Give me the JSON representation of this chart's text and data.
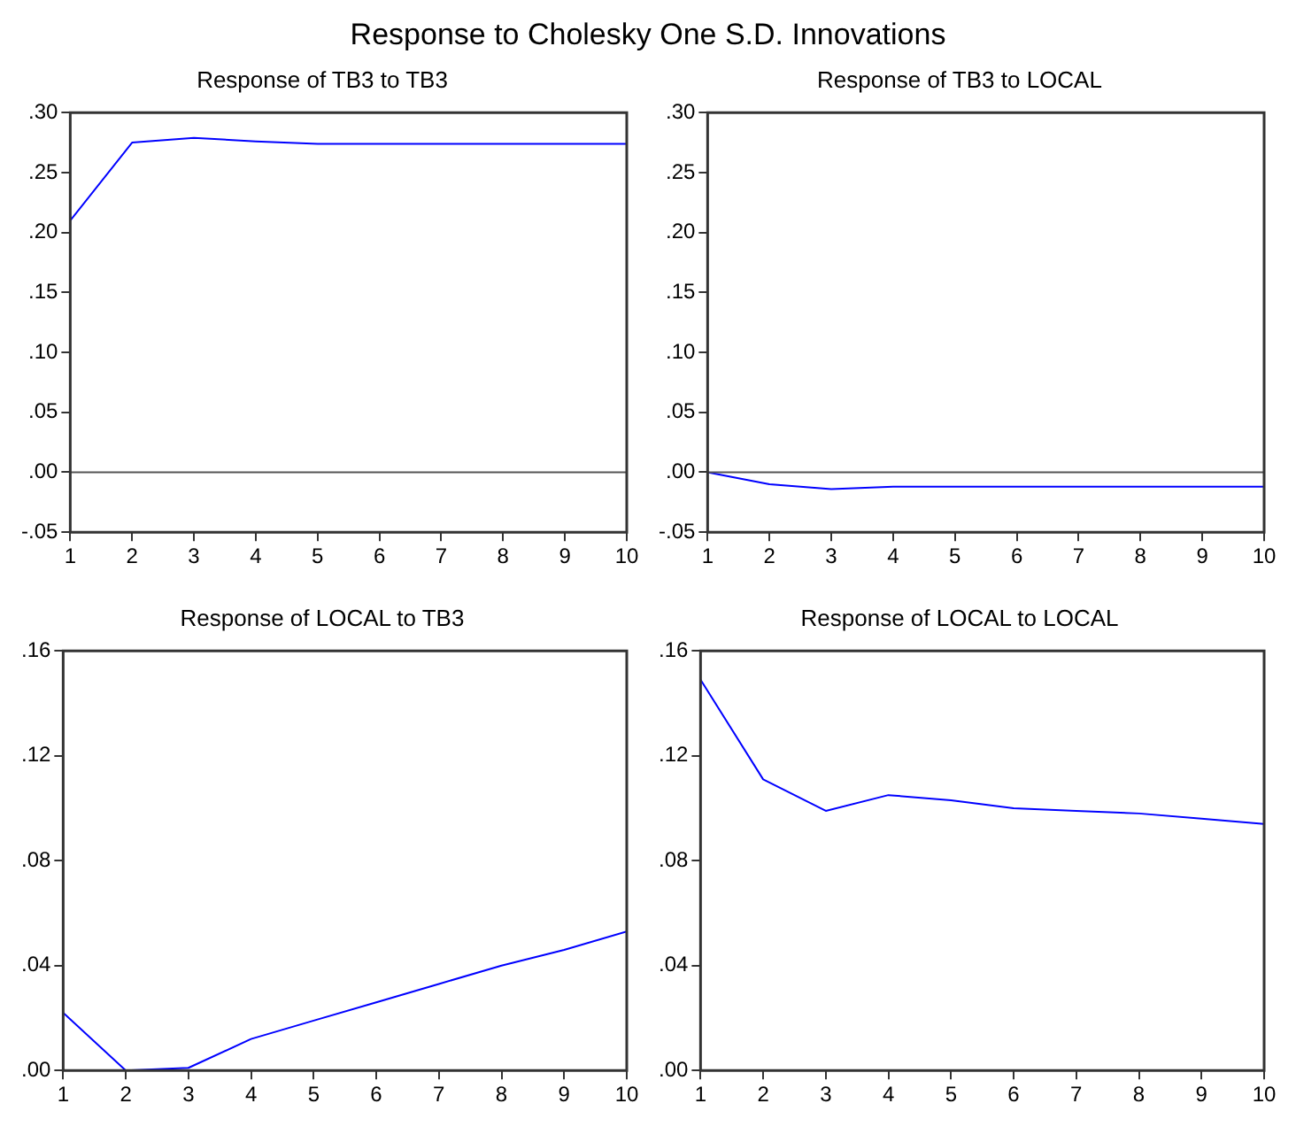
{
  "chart_data": [
    {
      "type": "line",
      "title": "Response of TB3 to TB3",
      "annotations": [
        "Response to Cholesky One S.D. Innovations"
      ],
      "x": [
        1,
        2,
        3,
        4,
        5,
        6,
        7,
        8,
        9,
        10
      ],
      "series": [
        {
          "color": "#0000ff",
          "values": [
            0.21,
            0.275,
            0.279,
            0.276,
            0.274,
            0.274,
            0.274,
            0.274,
            0.274,
            0.274
          ]
        }
      ],
      "xlim": [
        1,
        10
      ],
      "xticks": [
        1,
        2,
        3,
        4,
        5,
        6,
        7,
        8,
        9,
        10
      ],
      "ylim": [
        -0.05,
        0.3
      ],
      "yticks": [
        {
          "value": -0.05,
          "label": "-.05"
        },
        {
          "value": 0,
          "label": ".00"
        },
        {
          "value": 0.05,
          "label": ".05"
        },
        {
          "value": 0.1,
          "label": ".10"
        },
        {
          "value": 0.15,
          "label": ".15"
        },
        {
          "value": 0.2,
          "label": ".20"
        },
        {
          "value": 0.25,
          "label": ".25"
        },
        {
          "value": 0.3,
          "label": ".30"
        }
      ],
      "ref_lines": [
        {
          "axis": "y",
          "value": 0,
          "color": "#555555"
        }
      ],
      "grid": false,
      "legend": false
    },
    {
      "type": "line",
      "title": "Response of TB3 to LOCAL",
      "x": [
        1,
        2,
        3,
        4,
        5,
        6,
        7,
        8,
        9,
        10
      ],
      "series": [
        {
          "color": "#0000ff",
          "values": [
            0,
            -0.01,
            -0.014,
            -0.012,
            -0.012,
            -0.012,
            -0.012,
            -0.012,
            -0.012,
            -0.012
          ]
        }
      ],
      "xlim": [
        1,
        10
      ],
      "xticks": [
        1,
        2,
        3,
        4,
        5,
        6,
        7,
        8,
        9,
        10
      ],
      "ylim": [
        -0.05,
        0.3
      ],
      "yticks": [
        {
          "value": -0.05,
          "label": "-.05"
        },
        {
          "value": 0,
          "label": ".00"
        },
        {
          "value": 0.05,
          "label": ".05"
        },
        {
          "value": 0.1,
          "label": ".10"
        },
        {
          "value": 0.15,
          "label": ".15"
        },
        {
          "value": 0.2,
          "label": ".20"
        },
        {
          "value": 0.25,
          "label": ".25"
        },
        {
          "value": 0.3,
          "label": ".30"
        }
      ],
      "ref_lines": [
        {
          "axis": "y",
          "value": 0,
          "color": "#555555"
        }
      ],
      "grid": false,
      "legend": false
    },
    {
      "type": "line",
      "title": "Response of LOCAL to TB3",
      "x": [
        1,
        2,
        3,
        4,
        5,
        6,
        7,
        8,
        9,
        10
      ],
      "series": [
        {
          "color": "#0000ff",
          "values": [
            0.022,
            0.0,
            0.001,
            0.012,
            0.019,
            0.026,
            0.033,
            0.04,
            0.046,
            0.053
          ]
        }
      ],
      "xlim": [
        1,
        10
      ],
      "xticks": [
        1,
        2,
        3,
        4,
        5,
        6,
        7,
        8,
        9,
        10
      ],
      "ylim": [
        0,
        0.16
      ],
      "yticks": [
        {
          "value": 0,
          "label": ".00"
        },
        {
          "value": 0.04,
          "label": ".04"
        },
        {
          "value": 0.08,
          "label": ".08"
        },
        {
          "value": 0.12,
          "label": ".12"
        },
        {
          "value": 0.16,
          "label": ".16"
        }
      ],
      "grid": false,
      "legend": false
    },
    {
      "type": "line",
      "title": "Response of LOCAL to LOCAL",
      "x": [
        1,
        2,
        3,
        4,
        5,
        6,
        7,
        8,
        9,
        10
      ],
      "series": [
        {
          "color": "#0000ff",
          "values": [
            0.149,
            0.111,
            0.099,
            0.105,
            0.103,
            0.1,
            0.099,
            0.098,
            0.096,
            0.094
          ]
        }
      ],
      "xlim": [
        1,
        10
      ],
      "xticks": [
        1,
        2,
        3,
        4,
        5,
        6,
        7,
        8,
        9,
        10
      ],
      "ylim": [
        0,
        0.16
      ],
      "yticks": [
        {
          "value": 0,
          "label": ".00"
        },
        {
          "value": 0.04,
          "label": ".04"
        },
        {
          "value": 0.08,
          "label": ".08"
        },
        {
          "value": 0.12,
          "label": ".12"
        },
        {
          "value": 0.16,
          "label": ".16"
        }
      ],
      "grid": false,
      "legend": false
    }
  ]
}
